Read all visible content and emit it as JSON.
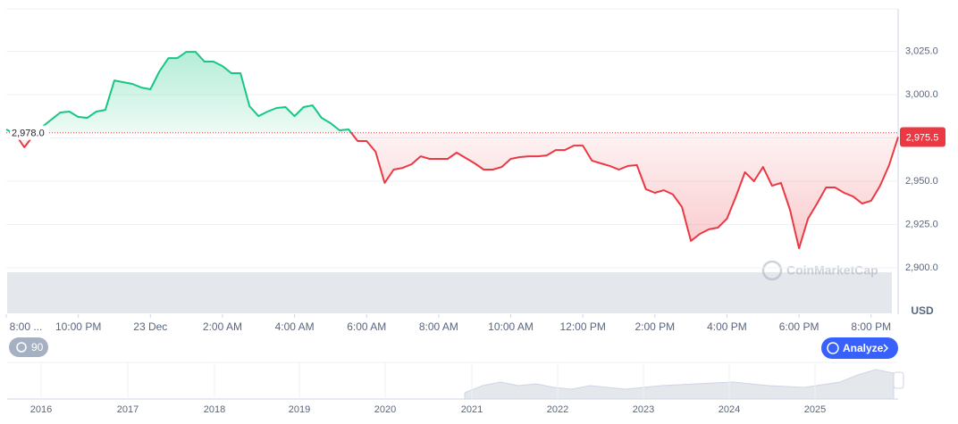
{
  "chart_data": {
    "type": "line",
    "x": [
      0,
      0.25,
      0.5,
      0.75,
      1,
      1.25,
      1.5,
      1.75,
      2,
      2.25,
      2.5,
      2.75,
      3,
      3.25,
      3.5,
      3.75,
      4,
      4.25,
      4.5,
      4.75,
      5,
      5.25,
      5.5,
      5.75,
      6,
      6.25,
      6.5,
      6.75,
      7,
      7.25,
      7.5,
      7.75,
      8,
      8.25,
      8.5,
      8.75,
      9,
      9.25,
      9.5,
      9.75,
      10,
      10.25,
      10.5,
      10.75,
      11,
      11.25,
      11.5,
      11.75,
      12,
      12.25,
      12.5,
      12.75,
      13,
      13.25,
      13.5,
      13.75,
      14,
      14.25,
      14.5,
      14.75,
      15,
      15.25,
      15.5,
      15.75,
      16,
      16.25,
      16.5,
      16.75,
      17,
      17.25,
      17.5,
      17.75,
      18,
      18.25,
      18.5,
      18.75,
      19,
      19.25,
      19.5,
      19.75,
      20,
      20.25,
      20.5,
      20.75,
      21,
      21.25,
      21.5,
      21.75,
      22,
      22.25,
      22.5,
      22.75,
      23,
      23.25,
      23.5,
      23.75,
      24,
      24.25,
      24.5,
      24.75
    ],
    "series": [
      {
        "values": [
          2979.9,
          2977.3,
          2969.6,
          2976.3,
          2981.4,
          2985.6,
          2989.7,
          2990.2,
          2987.1,
          2986.6,
          2990.2,
          2991.2,
          3008.2,
          3007.2,
          3006.2,
          3004.1,
          3003.1,
          3013.4,
          3021.1,
          3021.1,
          3024.7,
          3024.7,
          3019.1,
          3019.1,
          3016.5,
          3012.4,
          3012.4,
          2993.3,
          2987.6,
          2990.2,
          2992.3,
          2992.8,
          2987.6,
          2992.8,
          2993.8,
          2986.6,
          2983.5,
          2979.4,
          2979.9,
          2973.2,
          2973.2,
          2967.0,
          2949.0,
          2956.7,
          2957.7,
          2959.8,
          2964.4,
          2962.9,
          2962.9,
          2962.9,
          2966.5,
          2963.4,
          2960.3,
          2956.7,
          2956.7,
          2958.2,
          2962.9,
          2963.9,
          2964.4,
          2964.4,
          2964.9,
          2968.0,
          2968.0,
          2970.6,
          2970.6,
          2961.9,
          2960.3,
          2958.8,
          2956.7,
          2958.8,
          2959.3,
          2945.4,
          2943.3,
          2944.8,
          2942.3,
          2935.1,
          2915.5,
          2919.6,
          2922.2,
          2923.2,
          2928.4,
          2941.2,
          2955.2,
          2950.0,
          2958.2,
          2947.4,
          2949.0,
          2933.5,
          2911.3,
          2928.4,
          2937.1,
          2946.4,
          2946.4,
          2943.3,
          2941.2,
          2937.1,
          2938.7,
          2947.4,
          2959.3,
          2975.5
        ]
      }
    ],
    "up_color": "#16c784",
    "down_color": "#ea3943",
    "baseline": {
      "value": 2978.0,
      "label": "2,978.0"
    },
    "last_price": {
      "value": 2975.5,
      "label": "2,975.5"
    },
    "xlim": [
      0,
      24.75
    ],
    "xticks": [
      {
        "value": 0,
        "label": "8:00 ..."
      },
      {
        "value": 2,
        "label": "10:00 PM"
      },
      {
        "value": 4,
        "label": "23 Dec"
      },
      {
        "value": 6,
        "label": "2:00 AM"
      },
      {
        "value": 8,
        "label": "4:00 AM"
      },
      {
        "value": 10,
        "label": "6:00 AM"
      },
      {
        "value": 12,
        "label": "8:00 AM"
      },
      {
        "value": 14,
        "label": "10:00 AM"
      },
      {
        "value": 16,
        "label": "12:00 PM"
      },
      {
        "value": 18,
        "label": "2:00 PM"
      },
      {
        "value": 20,
        "label": "4:00 PM"
      },
      {
        "value": 22,
        "label": "6:00 PM"
      },
      {
        "value": 24,
        "label": "8:00 PM"
      }
    ],
    "ylim": [
      2900,
      3049.5
    ],
    "yticks": [
      {
        "value": 2900,
        "label": "2,900.0"
      },
      {
        "value": 2925,
        "label": "2,925.0"
      },
      {
        "value": 2950,
        "label": "2,950.0"
      },
      {
        "value": 2975,
        "label": "2,975.0"
      },
      {
        "value": 3000,
        "label": "3,000.0"
      },
      {
        "value": 3025,
        "label": "3,025.0"
      }
    ],
    "y_label": "USD",
    "grid": true
  },
  "ui": {
    "watermark": "CoinMarketCap",
    "badge": "90",
    "analyze_button": "Analyze",
    "navigator_years": [
      "2016",
      "2017",
      "2018",
      "2019",
      "2020",
      "2021",
      "2022",
      "2023",
      "2024",
      "2025"
    ]
  }
}
